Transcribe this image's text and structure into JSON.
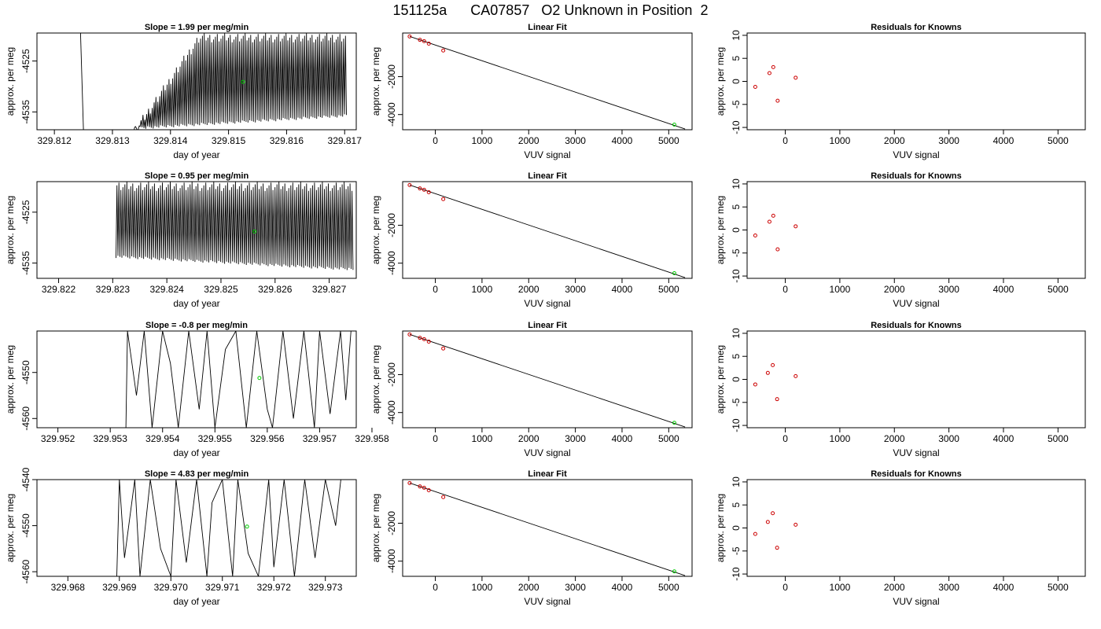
{
  "page": {
    "title": "151125a      CA07857   O2 Unknown in Position  2"
  },
  "colors": {
    "axis": "#000000",
    "trace": "#000000",
    "unknown_point": "#00cc00",
    "known_point": "#cc0000",
    "fit_line": "#000000"
  },
  "chart_data": [
    {
      "type": "line",
      "title": "Slope =  1.99  per meg/min",
      "xlabel": "day of year",
      "ylabel": "approx. per meg",
      "xlim": [
        329.8117,
        329.8172
      ],
      "ylim": [
        -4538.5,
        -4519.5
      ],
      "xticks": [
        "329.812",
        "329.813",
        "329.814",
        "329.815",
        "329.816",
        "329.817"
      ],
      "yticks": [
        "-4525",
        "-4535"
      ],
      "series": [
        {
          "segments": [
            {
              "x": [
                329.81245,
                329.8125
              ],
              "y": [
                -4519.5,
                -4538.5
              ]
            },
            {
              "x_start": 329.81335,
              "x_end": 329.81703,
              "cycles": 115,
              "y_min_start": -4538.5,
              "y_max_start": -4538.5,
              "y_min_end": -4536.0,
              "y_max_end": -4519.5,
              "ramp_until": 329.8145
            }
          ]
        }
      ],
      "unknown_point": {
        "x": 329.81525,
        "y": -4529.1
      }
    },
    {
      "type": "scatter",
      "title": "Linear Fit",
      "xlabel": "VUV signal",
      "ylabel": "approx. per meg",
      "xlim": [
        -700,
        5500
      ],
      "ylim": [
        -4800,
        300
      ],
      "xticks": [
        "0",
        "1000",
        "2000",
        "3000",
        "4000",
        "5000"
      ],
      "yticks": [
        "-2000",
        "-4000"
      ],
      "known_points": {
        "x": [
          -550,
          -330,
          -240,
          -140,
          170
        ],
        "y": [
          120,
          -60,
          -130,
          -260,
          -620
        ]
      },
      "unknown_point": {
        "x": 5120,
        "y": -4530
      },
      "fit_line": {
        "x": [
          -550,
          5350
        ],
        "y": [
          120,
          -4760
        ]
      }
    },
    {
      "type": "scatter",
      "title": "Residuals for Knowns",
      "xlabel": "VUV signal",
      "ylabel": "approx. per meg",
      "xlim": [
        -700,
        5500
      ],
      "ylim": [
        -10.5,
        10.5
      ],
      "xticks": [
        "0",
        "1000",
        "2000",
        "3000",
        "4000",
        "5000"
      ],
      "yticks": [
        "10",
        "5",
        "0",
        "-5",
        "-10"
      ],
      "known_points": {
        "x": [
          -550,
          -290,
          -220,
          -140,
          190
        ],
        "y": [
          -1.2,
          1.8,
          3.1,
          -4.2,
          0.8
        ]
      }
    },
    {
      "type": "line",
      "title": "Slope =  0.95  per meg/min",
      "xlabel": "day of year",
      "ylabel": "approx. per meg",
      "xlim": [
        329.8216,
        329.8275
      ],
      "ylim": [
        -4538.0,
        -4519.0
      ],
      "xticks": [
        "329.822",
        "329.823",
        "329.824",
        "329.825",
        "329.826",
        "329.827"
      ],
      "yticks": [
        "-4525",
        "-4535"
      ],
      "series": [
        {
          "segments": [
            {
              "x_start": 329.82306,
              "x_end": 329.82744,
              "cycles": 120,
              "y_min_start": -4534.0,
              "y_max_start": -4519.0,
              "y_min_end": -4536.5,
              "y_max_end": -4519.0
            }
          ]
        }
      ],
      "unknown_point": {
        "x": 329.82562,
        "y": -4528.8
      }
    },
    {
      "type": "scatter",
      "title": "Linear Fit",
      "xlabel": "VUV signal",
      "ylabel": "approx. per meg",
      "xlim": [
        -700,
        5500
      ],
      "ylim": [
        -4800,
        300
      ],
      "xticks": [
        "0",
        "1000",
        "2000",
        "3000",
        "4000",
        "5000"
      ],
      "yticks": [
        "-2000",
        "-4000"
      ],
      "known_points": {
        "x": [
          -550,
          -330,
          -240,
          -140,
          170
        ],
        "y": [
          120,
          -60,
          -130,
          -260,
          -620
        ]
      },
      "unknown_point": {
        "x": 5120,
        "y": -4530
      },
      "fit_line": {
        "x": [
          -550,
          5350
        ],
        "y": [
          120,
          -4760
        ]
      }
    },
    {
      "type": "scatter",
      "title": "Residuals for Knowns",
      "xlabel": "VUV signal",
      "ylabel": "approx. per meg",
      "xlim": [
        -700,
        5500
      ],
      "ylim": [
        -10.5,
        10.5
      ],
      "xticks": [
        "0",
        "1000",
        "2000",
        "3000",
        "4000",
        "5000"
      ],
      "yticks": [
        "10",
        "5",
        "0",
        "-5",
        "-10"
      ],
      "known_points": {
        "x": [
          -550,
          -290,
          -220,
          -140,
          190
        ],
        "y": [
          -1.2,
          1.8,
          3.1,
          -4.2,
          0.8
        ]
      }
    },
    {
      "type": "line",
      "title": "Slope =  -0.8  per meg/min",
      "xlabel": "day of year",
      "ylabel": "approx. per meg",
      "xlim": [
        329.9516,
        329.9577
      ],
      "ylim": [
        -4562.0,
        -4541.0
      ],
      "xticks": [
        "329.952",
        "329.953",
        "329.954",
        "329.955",
        "329.956",
        "329.957",
        "329.958"
      ],
      "yticks": [
        "-4550",
        "-4560"
      ],
      "series": [
        {
          "x": [
            329.9533,
            329.95333,
            329.9535,
            329.95365,
            329.9538,
            329.954,
            329.95415,
            329.9543,
            329.9545,
            329.9547,
            329.95485,
            329.955,
            329.9552,
            329.9554,
            329.9556,
            329.9558,
            329.956,
            329.9561,
            329.9563,
            329.9565,
            329.9567,
            329.9569,
            329.957,
            329.9572,
            329.9574,
            329.9575,
            329.9576
          ],
          "y": [
            -4562,
            -4541,
            -4555,
            -4541,
            -4562,
            -4541,
            -4548,
            -4562,
            -4541,
            -4558,
            -4541,
            -4562,
            -4545,
            -4541,
            -4562,
            -4541,
            -4558,
            -4562,
            -4541,
            -4560,
            -4541,
            -4562,
            -4541,
            -4559,
            -4541,
            -4556,
            -4541
          ]
        }
      ],
      "unknown_point": {
        "x": 329.95585,
        "y": -4551.2
      }
    },
    {
      "type": "scatter",
      "title": "Linear Fit",
      "xlabel": "VUV signal",
      "ylabel": "approx. per meg",
      "xlim": [
        -700,
        5500
      ],
      "ylim": [
        -4800,
        300
      ],
      "xticks": [
        "0",
        "1000",
        "2000",
        "3000",
        "4000",
        "5000"
      ],
      "yticks": [
        "-2000",
        "-4000"
      ],
      "known_points": {
        "x": [
          -550,
          -330,
          -240,
          -140,
          170
        ],
        "y": [
          120,
          -60,
          -130,
          -260,
          -620
        ]
      },
      "unknown_point": {
        "x": 5120,
        "y": -4540
      },
      "fit_line": {
        "x": [
          -550,
          5350
        ],
        "y": [
          120,
          -4760
        ]
      }
    },
    {
      "type": "scatter",
      "title": "Residuals for Knowns",
      "xlabel": "VUV signal",
      "ylabel": "approx. per meg",
      "xlim": [
        -700,
        5500
      ],
      "ylim": [
        -10.5,
        10.5
      ],
      "xticks": [
        "0",
        "1000",
        "2000",
        "3000",
        "4000",
        "5000"
      ],
      "yticks": [
        "10",
        "5",
        "0",
        "-5",
        "-10"
      ],
      "known_points": {
        "x": [
          -550,
          -320,
          -230,
          -150,
          190
        ],
        "y": [
          -1.1,
          1.4,
          3.1,
          -4.3,
          0.7
        ]
      }
    },
    {
      "type": "line",
      "title": "Slope =  4.83  per meg/min",
      "xlabel": "day of year",
      "ylabel": "approx. per meg",
      "xlim": [
        329.9674,
        329.9736
      ],
      "ylim": [
        -4561.0,
        -4540.0
      ],
      "xticks": [
        "329.968",
        "329.969",
        "329.970",
        "329.971",
        "329.972",
        "329.973"
      ],
      "yticks": [
        "-4540",
        "-4550",
        "-4560"
      ],
      "series": [
        {
          "x": [
            329.96895,
            329.969,
            329.9691,
            329.9693,
            329.9694,
            329.9696,
            329.9698,
            329.97,
            329.9701,
            329.9703,
            329.9705,
            329.9707,
            329.9708,
            329.971,
            329.9712,
            329.9713,
            329.9715,
            329.9717,
            329.9719,
            329.972,
            329.9722,
            329.9724,
            329.9726,
            329.9728,
            329.973,
            329.9732,
            329.9733
          ],
          "y": [
            -4561,
            -4540,
            -4557,
            -4540,
            -4561,
            -4540,
            -4555,
            -4561,
            -4540,
            -4558,
            -4540,
            -4561,
            -4545,
            -4540,
            -4561,
            -4540,
            -4556,
            -4561,
            -4540,
            -4559,
            -4540,
            -4561,
            -4540,
            -4557,
            -4540,
            -4550,
            -4540
          ]
        }
      ],
      "unknown_point": {
        "x": 329.97148,
        "y": -4550.2
      }
    },
    {
      "type": "scatter",
      "title": "Linear Fit",
      "xlabel": "VUV signal",
      "ylabel": "approx. per meg",
      "xlim": [
        -700,
        5500
      ],
      "ylim": [
        -4800,
        300
      ],
      "xticks": [
        "0",
        "1000",
        "2000",
        "3000",
        "4000",
        "5000"
      ],
      "yticks": [
        "-2000",
        "-4000"
      ],
      "known_points": {
        "x": [
          -550,
          -330,
          -240,
          -140,
          170
        ],
        "y": [
          120,
          -60,
          -130,
          -260,
          -620
        ]
      },
      "unknown_point": {
        "x": 5120,
        "y": -4540
      },
      "fit_line": {
        "x": [
          -550,
          5350
        ],
        "y": [
          120,
          -4760
        ]
      }
    },
    {
      "type": "scatter",
      "title": "Residuals for Knowns",
      "xlabel": "VUV signal",
      "ylabel": "approx. per meg",
      "xlim": [
        -700,
        5500
      ],
      "ylim": [
        -10.5,
        10.5
      ],
      "xticks": [
        "0",
        "1000",
        "2000",
        "3000",
        "4000",
        "5000"
      ],
      "yticks": [
        "10",
        "5",
        "0",
        "-5",
        "-10"
      ],
      "known_points": {
        "x": [
          -550,
          -320,
          -230,
          -150,
          190
        ],
        "y": [
          -1.3,
          1.3,
          3.2,
          -4.3,
          0.7
        ]
      }
    }
  ]
}
